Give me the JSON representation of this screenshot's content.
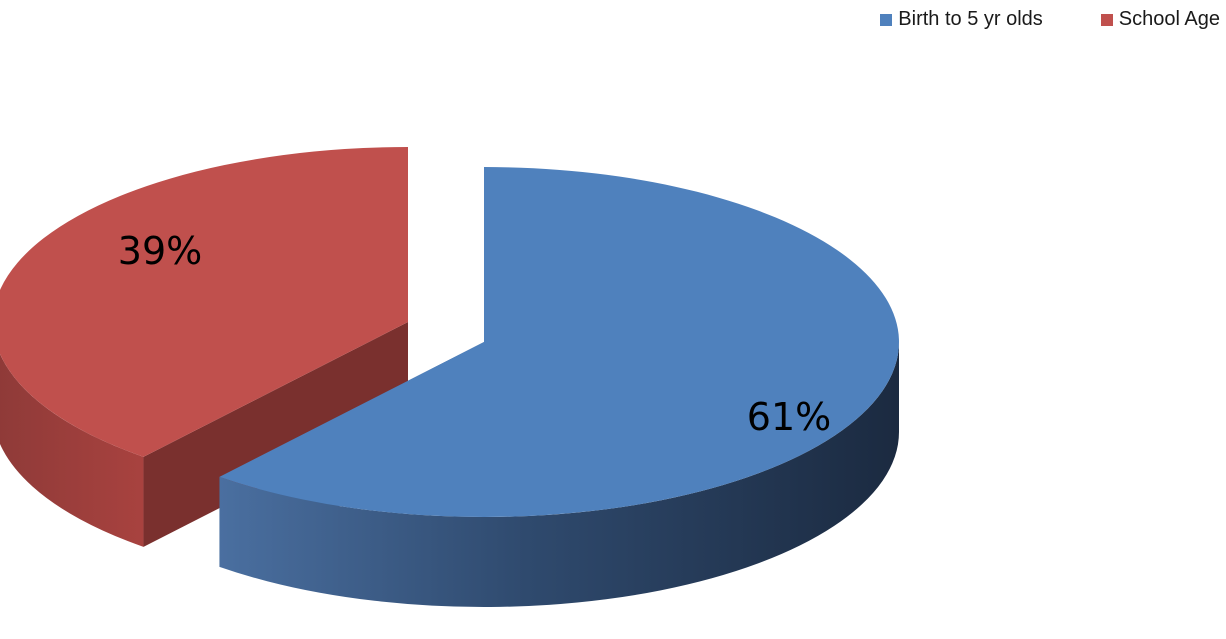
{
  "chart_data": {
    "type": "pie",
    "title": "",
    "categories": [
      "Birth to 5 yr olds",
      "School Age"
    ],
    "values": [
      61,
      39
    ],
    "value_labels": [
      "61%",
      "39%"
    ],
    "colors": [
      "#4F81BD",
      "#C0504D"
    ],
    "style": "3d-exploded",
    "legend_position": "top-right"
  }
}
